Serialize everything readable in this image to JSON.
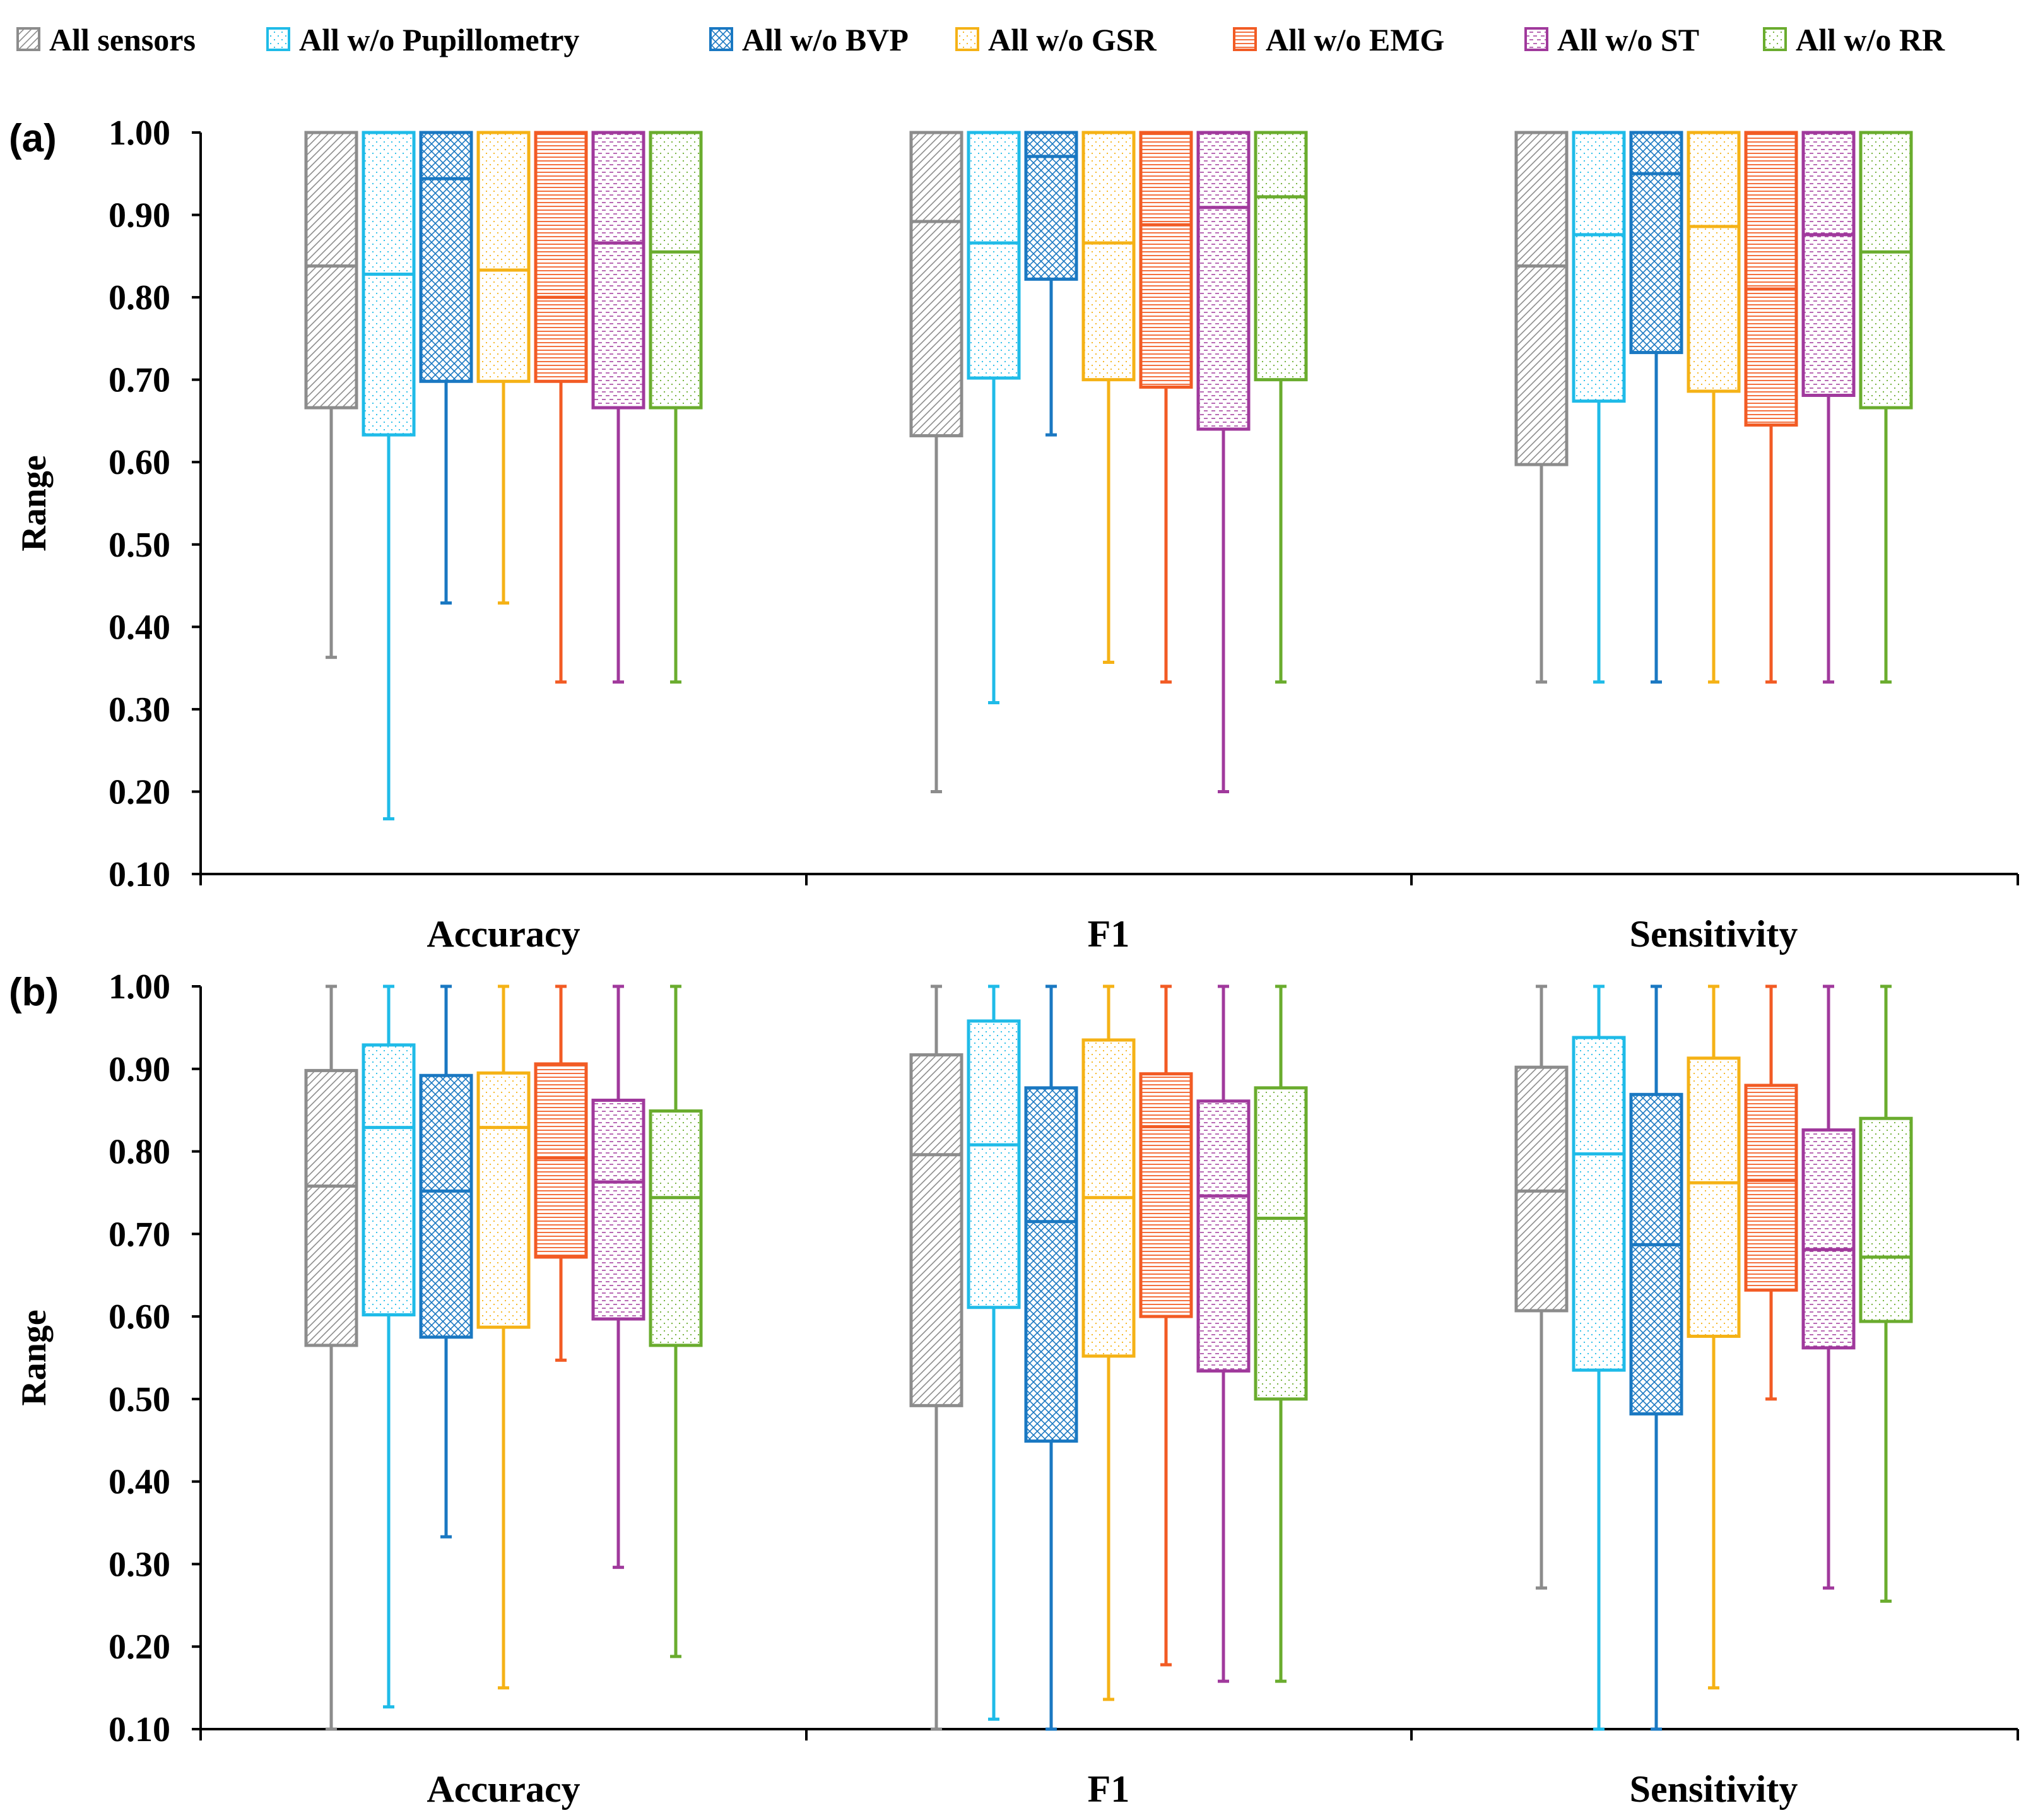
{
  "chart_data": {
    "type": "boxplot",
    "legend": {
      "position": "top",
      "entries": [
        {
          "name": "All sensors",
          "color": "#8c8c8c",
          "pattern": "diag"
        },
        {
          "name": "All w/o Pupillometry",
          "color": "#1fbbe8",
          "pattern": "dots"
        },
        {
          "name": "All w/o BVP",
          "color": "#1a78c2",
          "pattern": "cross"
        },
        {
          "name": "All w/o GSR",
          "color": "#f5b216",
          "pattern": "dots"
        },
        {
          "name": "All w/o EMG",
          "color": "#f25b24",
          "pattern": "hlines"
        },
        {
          "name": "All w/o ST",
          "color": "#a0399c",
          "pattern": "dashes"
        },
        {
          "name": "All w/o RR",
          "color": "#6aac2e",
          "pattern": "dots"
        }
      ]
    },
    "panels": [
      {
        "label": "(a)",
        "ylabel": "Range",
        "ylim": [
          0.1,
          1.0
        ],
        "yticks": [
          "1.00",
          "0.90",
          "0.80",
          "0.70",
          "0.60",
          "0.50",
          "0.40",
          "0.30",
          "0.20",
          "0.10"
        ],
        "categories": [
          "Accuracy",
          "F1",
          "Sensitivity"
        ],
        "groups": [
          {
            "category": "Accuracy",
            "boxes": [
              {
                "series": "All sensors",
                "min": 0.363,
                "q1": 0.666,
                "median": 0.838,
                "q3": 1.0,
                "max": 1.0
              },
              {
                "series": "All w/o Pupillometry",
                "min": 0.167,
                "q1": 0.633,
                "median": 0.828,
                "q3": 1.0,
                "max": 1.0
              },
              {
                "series": "All w/o BVP",
                "min": 0.429,
                "q1": 0.698,
                "median": 0.944,
                "q3": 1.0,
                "max": 1.0
              },
              {
                "series": "All w/o GSR",
                "min": 0.429,
                "q1": 0.698,
                "median": 0.833,
                "q3": 1.0,
                "max": 1.0
              },
              {
                "series": "All w/o EMG",
                "min": 0.333,
                "q1": 0.698,
                "median": 0.8,
                "q3": 1.0,
                "max": 1.0
              },
              {
                "series": "All w/o ST",
                "min": 0.333,
                "q1": 0.666,
                "median": 0.866,
                "q3": 1.0,
                "max": 1.0
              },
              {
                "series": "All w/o RR",
                "min": 0.333,
                "q1": 0.666,
                "median": 0.855,
                "q3": 1.0,
                "max": 1.0
              }
            ]
          },
          {
            "category": "F1",
            "boxes": [
              {
                "series": "All sensors",
                "min": 0.2,
                "q1": 0.632,
                "median": 0.892,
                "q3": 1.0,
                "max": 1.0
              },
              {
                "series": "All w/o Pupillometry",
                "min": 0.308,
                "q1": 0.702,
                "median": 0.866,
                "q3": 1.0,
                "max": 1.0
              },
              {
                "series": "All w/o BVP",
                "min": 0.633,
                "q1": 0.822,
                "median": 0.971,
                "q3": 1.0,
                "max": 1.0
              },
              {
                "series": "All w/o GSR",
                "min": 0.357,
                "q1": 0.7,
                "median": 0.866,
                "q3": 1.0,
                "max": 1.0
              },
              {
                "series": "All w/o EMG",
                "min": 0.333,
                "q1": 0.691,
                "median": 0.888,
                "q3": 1.0,
                "max": 1.0
              },
              {
                "series": "All w/o ST",
                "min": 0.2,
                "q1": 0.64,
                "median": 0.909,
                "q3": 1.0,
                "max": 1.0
              },
              {
                "series": "All w/o RR",
                "min": 0.333,
                "q1": 0.7,
                "median": 0.922,
                "q3": 1.0,
                "max": 1.0
              }
            ]
          },
          {
            "category": "Sensitivity",
            "boxes": [
              {
                "series": "All sensors",
                "min": 0.333,
                "q1": 0.597,
                "median": 0.838,
                "q3": 1.0,
                "max": 1.0
              },
              {
                "series": "All w/o Pupillometry",
                "min": 0.333,
                "q1": 0.674,
                "median": 0.876,
                "q3": 1.0,
                "max": 1.0
              },
              {
                "series": "All w/o BVP",
                "min": 0.333,
                "q1": 0.733,
                "median": 0.95,
                "q3": 1.0,
                "max": 1.0
              },
              {
                "series": "All w/o GSR",
                "min": 0.333,
                "q1": 0.686,
                "median": 0.886,
                "q3": 1.0,
                "max": 1.0
              },
              {
                "series": "All w/o EMG",
                "min": 0.333,
                "q1": 0.645,
                "median": 0.81,
                "q3": 1.0,
                "max": 1.0
              },
              {
                "series": "All w/o ST",
                "min": 0.333,
                "q1": 0.681,
                "median": 0.876,
                "q3": 1.0,
                "max": 1.0
              },
              {
                "series": "All w/o RR",
                "min": 0.333,
                "q1": 0.666,
                "median": 0.855,
                "q3": 1.0,
                "max": 1.0
              }
            ]
          }
        ]
      },
      {
        "label": "(b)",
        "ylabel": "Range",
        "ylim": [
          0.1,
          1.0
        ],
        "yticks": [
          "1.00",
          "0.90",
          "0.80",
          "0.70",
          "0.60",
          "0.50",
          "0.40",
          "0.30",
          "0.20",
          "0.10"
        ],
        "categories": [
          "Accuracy",
          "F1",
          "Sensitivity"
        ],
        "groups": [
          {
            "category": "Accuracy",
            "boxes": [
              {
                "series": "All sensors",
                "min": 0.1,
                "q1": 0.565,
                "median": 0.758,
                "q3": 0.898,
                "max": 1.0
              },
              {
                "series": "All w/o Pupillometry",
                "min": 0.127,
                "q1": 0.602,
                "median": 0.829,
                "q3": 0.929,
                "max": 1.0
              },
              {
                "series": "All w/o BVP",
                "min": 0.333,
                "q1": 0.575,
                "median": 0.752,
                "q3": 0.892,
                "max": 1.0
              },
              {
                "series": "All w/o GSR",
                "min": 0.15,
                "q1": 0.587,
                "median": 0.829,
                "q3": 0.895,
                "max": 1.0
              },
              {
                "series": "All w/o EMG",
                "min": 0.547,
                "q1": 0.672,
                "median": 0.792,
                "q3": 0.906,
                "max": 1.0
              },
              {
                "series": "All w/o ST",
                "min": 0.296,
                "q1": 0.597,
                "median": 0.763,
                "q3": 0.862,
                "max": 1.0
              },
              {
                "series": "All w/o RR",
                "min": 0.188,
                "q1": 0.565,
                "median": 0.744,
                "q3": 0.849,
                "max": 1.0
              }
            ]
          },
          {
            "category": "F1",
            "boxes": [
              {
                "series": "All sensors",
                "min": 0.1,
                "q1": 0.492,
                "median": 0.796,
                "q3": 0.917,
                "max": 1.0
              },
              {
                "series": "All w/o Pupillometry",
                "min": 0.112,
                "q1": 0.611,
                "median": 0.808,
                "q3": 0.958,
                "max": 1.0
              },
              {
                "series": "All w/o BVP",
                "min": 0.1,
                "q1": 0.449,
                "median": 0.715,
                "q3": 0.877,
                "max": 1.0
              },
              {
                "series": "All w/o GSR",
                "min": 0.136,
                "q1": 0.552,
                "median": 0.744,
                "q3": 0.935,
                "max": 1.0
              },
              {
                "series": "All w/o EMG",
                "min": 0.178,
                "q1": 0.6,
                "median": 0.83,
                "q3": 0.894,
                "max": 1.0
              },
              {
                "series": "All w/o ST",
                "min": 0.158,
                "q1": 0.534,
                "median": 0.746,
                "q3": 0.861,
                "max": 1.0
              },
              {
                "series": "All w/o RR",
                "min": 0.158,
                "q1": 0.5,
                "median": 0.719,
                "q3": 0.877,
                "max": 1.0
              }
            ]
          },
          {
            "category": "Sensitivity",
            "boxes": [
              {
                "series": "All sensors",
                "min": 0.271,
                "q1": 0.607,
                "median": 0.752,
                "q3": 0.902,
                "max": 1.0
              },
              {
                "series": "All w/o Pupillometry",
                "min": 0.1,
                "q1": 0.535,
                "median": 0.797,
                "q3": 0.938,
                "max": 1.0
              },
              {
                "series": "All w/o BVP",
                "min": 0.1,
                "q1": 0.482,
                "median": 0.687,
                "q3": 0.869,
                "max": 1.0
              },
              {
                "series": "All w/o GSR",
                "min": 0.15,
                "q1": 0.576,
                "median": 0.762,
                "q3": 0.913,
                "max": 1.0
              },
              {
                "series": "All w/o EMG",
                "min": 0.5,
                "q1": 0.632,
                "median": 0.765,
                "q3": 0.88,
                "max": 1.0
              },
              {
                "series": "All w/o ST",
                "min": 0.271,
                "q1": 0.562,
                "median": 0.681,
                "q3": 0.826,
                "max": 1.0
              },
              {
                "series": "All w/o RR",
                "min": 0.255,
                "q1": 0.594,
                "median": 0.672,
                "q3": 0.84,
                "max": 1.0
              }
            ]
          }
        ]
      }
    ]
  }
}
